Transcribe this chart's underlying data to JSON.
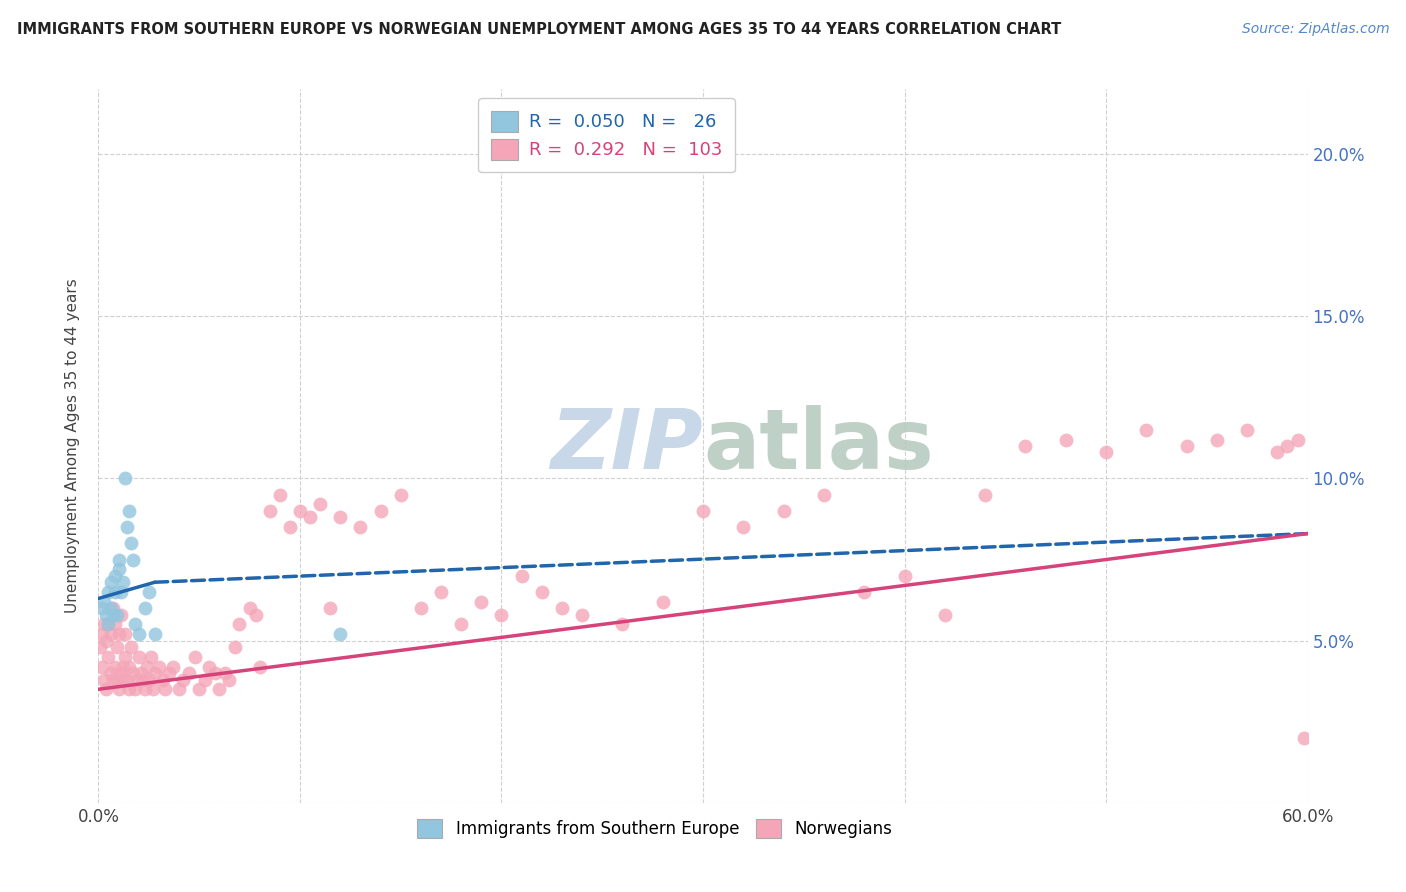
{
  "title": "IMMIGRANTS FROM SOUTHERN EUROPE VS NORWEGIAN UNEMPLOYMENT AMONG AGES 35 TO 44 YEARS CORRELATION CHART",
  "source": "Source: ZipAtlas.com",
  "ylabel": "Unemployment Among Ages 35 to 44 years",
  "xlim": [
    0.0,
    0.6
  ],
  "ylim": [
    0.0,
    0.22
  ],
  "yticks": [
    0.05,
    0.1,
    0.15,
    0.2
  ],
  "ytick_labels": [
    "5.0%",
    "10.0%",
    "15.0%",
    "20.0%"
  ],
  "xticks": [
    0.0,
    0.1,
    0.2,
    0.3,
    0.4,
    0.5,
    0.6
  ],
  "xtick_labels": [
    "0.0%",
    "",
    "",
    "",
    "",
    "",
    "60.0%"
  ],
  "blue_R": 0.05,
  "blue_N": 26,
  "pink_R": 0.292,
  "pink_N": 103,
  "blue_color": "#92c5de",
  "pink_color": "#f4a6b8",
  "blue_line_color": "#2166ac",
  "pink_line_color": "#d6437a",
  "watermark_color": "#c8d8e8",
  "background_color": "#ffffff",
  "grid_color": "#d0d0d0",
  "blue_x": [
    0.002,
    0.003,
    0.004,
    0.005,
    0.005,
    0.006,
    0.006,
    0.007,
    0.008,
    0.008,
    0.009,
    0.01,
    0.01,
    0.011,
    0.012,
    0.013,
    0.014,
    0.015,
    0.016,
    0.017,
    0.018,
    0.02,
    0.023,
    0.025,
    0.028,
    0.12
  ],
  "blue_y": [
    0.06,
    0.062,
    0.058,
    0.065,
    0.055,
    0.068,
    0.06,
    0.058,
    0.07,
    0.065,
    0.058,
    0.072,
    0.075,
    0.065,
    0.068,
    0.1,
    0.085,
    0.09,
    0.08,
    0.075,
    0.055,
    0.052,
    0.06,
    0.065,
    0.052,
    0.052
  ],
  "pink_x": [
    0.001,
    0.002,
    0.002,
    0.003,
    0.003,
    0.004,
    0.004,
    0.005,
    0.005,
    0.006,
    0.006,
    0.007,
    0.007,
    0.008,
    0.008,
    0.009,
    0.009,
    0.01,
    0.01,
    0.011,
    0.011,
    0.012,
    0.012,
    0.013,
    0.013,
    0.014,
    0.015,
    0.015,
    0.016,
    0.017,
    0.018,
    0.019,
    0.02,
    0.021,
    0.022,
    0.023,
    0.024,
    0.025,
    0.026,
    0.027,
    0.028,
    0.03,
    0.032,
    0.033,
    0.035,
    0.037,
    0.04,
    0.042,
    0.045,
    0.048,
    0.05,
    0.053,
    0.055,
    0.058,
    0.06,
    0.063,
    0.065,
    0.068,
    0.07,
    0.075,
    0.078,
    0.08,
    0.085,
    0.09,
    0.095,
    0.1,
    0.105,
    0.11,
    0.115,
    0.12,
    0.13,
    0.14,
    0.15,
    0.16,
    0.17,
    0.18,
    0.19,
    0.2,
    0.21,
    0.22,
    0.23,
    0.24,
    0.26,
    0.28,
    0.3,
    0.32,
    0.34,
    0.36,
    0.38,
    0.4,
    0.42,
    0.44,
    0.46,
    0.48,
    0.5,
    0.52,
    0.54,
    0.555,
    0.57,
    0.585,
    0.59,
    0.595,
    0.598
  ],
  "pink_y": [
    0.048,
    0.042,
    0.052,
    0.038,
    0.055,
    0.035,
    0.05,
    0.045,
    0.055,
    0.04,
    0.052,
    0.038,
    0.06,
    0.042,
    0.055,
    0.038,
    0.048,
    0.035,
    0.052,
    0.04,
    0.058,
    0.042,
    0.038,
    0.045,
    0.052,
    0.038,
    0.042,
    0.035,
    0.048,
    0.04,
    0.035,
    0.038,
    0.045,
    0.04,
    0.038,
    0.035,
    0.042,
    0.038,
    0.045,
    0.035,
    0.04,
    0.042,
    0.038,
    0.035,
    0.04,
    0.042,
    0.035,
    0.038,
    0.04,
    0.045,
    0.035,
    0.038,
    0.042,
    0.04,
    0.035,
    0.04,
    0.038,
    0.048,
    0.055,
    0.06,
    0.058,
    0.042,
    0.09,
    0.095,
    0.085,
    0.09,
    0.088,
    0.092,
    0.06,
    0.088,
    0.085,
    0.09,
    0.095,
    0.06,
    0.065,
    0.055,
    0.062,
    0.058,
    0.07,
    0.065,
    0.06,
    0.058,
    0.055,
    0.062,
    0.09,
    0.085,
    0.09,
    0.095,
    0.065,
    0.07,
    0.058,
    0.095,
    0.11,
    0.112,
    0.108,
    0.115,
    0.11,
    0.112,
    0.115,
    0.108,
    0.11,
    0.112,
    0.02
  ],
  "blue_trend_x": [
    0.0,
    0.028,
    0.6
  ],
  "blue_trend_solid_end": 0.028,
  "pink_trend_x0": 0.0,
  "pink_trend_x1": 0.6,
  "blue_trend_y0": 0.063,
  "blue_trend_y1_solid": 0.068,
  "blue_trend_y1_dash": 0.083,
  "pink_trend_y0": 0.035,
  "pink_trend_y1": 0.083
}
